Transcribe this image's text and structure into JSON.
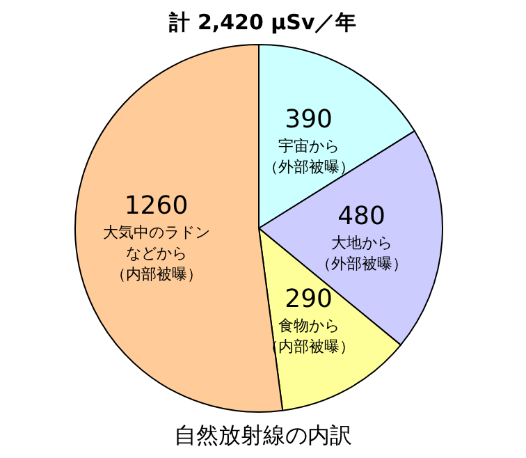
{
  "chart_data": {
    "type": "pie",
    "title": "計 2,420 μSv／年",
    "annotations": [
      "自然放射線の内訳"
    ],
    "categories": [
      "宇宙から（外部被曝）",
      "大地から（外部被曝）",
      "食物から（内部被曝）",
      "大気中のラドンなどから（内部被曝）"
    ],
    "values": [
      390,
      480,
      290,
      1260
    ],
    "colors": [
      "#ccffff",
      "#ccccff",
      "#ffff99",
      "#ffcc99"
    ],
    "data_labels": true
  }
}
